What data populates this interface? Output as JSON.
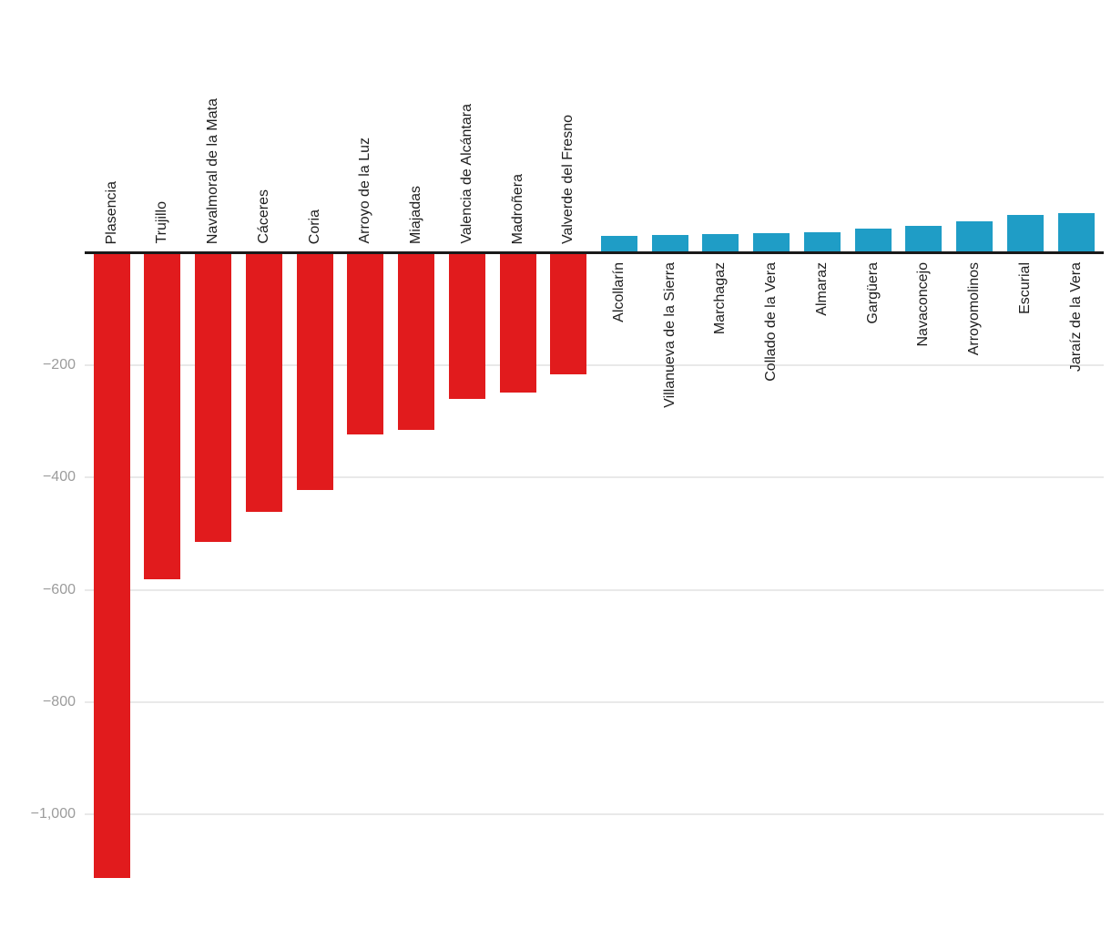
{
  "chart_data": {
    "type": "bar",
    "title": "",
    "subtitle": "",
    "xlabel": "",
    "ylabel": "",
    "legend": "none",
    "grid": true,
    "orientation": "vertical-diverging",
    "x_labels_rotated_degrees": 90,
    "categories": [
      "Plasencia",
      "Trujillo",
      "Navalmoral de la Mata",
      "Cáceres",
      "Coria",
      "Arroyo de la Luz",
      "Miajadas",
      "Valencia de Alcántara",
      "Madroñera",
      "Valverde del Fresno",
      "Alcollarín",
      "Villanueva de la Sierra",
      "Marchagaz",
      "Collado de la Vera",
      "Almaraz",
      "Gargüera",
      "Navaconcejo",
      "Arroyomolinos",
      "Escurial",
      "Jaraíz de la Vera"
    ],
    "values": [
      -1114,
      -581,
      -514,
      -461,
      -422,
      -323,
      -315,
      -260,
      -248,
      -216,
      30,
      31,
      32,
      34,
      36,
      43,
      47,
      55,
      67,
      70
    ],
    "ylim": [
      -1200,
      450
    ],
    "yticks": [
      {
        "value": -200,
        "label": "−200"
      },
      {
        "value": -400,
        "label": "−400"
      },
      {
        "value": -600,
        "label": "−600"
      },
      {
        "value": -800,
        "label": "−800"
      },
      {
        "value": -1000,
        "label": "−1,000"
      }
    ],
    "colors": {
      "negative_bar": "#e11b1d",
      "positive_bar": "#1f9dc6",
      "axis_line": "#1a1a1a",
      "gridline": "#e9e9e9",
      "tick_label": "#9c9c9c",
      "category_label": "#1e1e1e"
    }
  }
}
